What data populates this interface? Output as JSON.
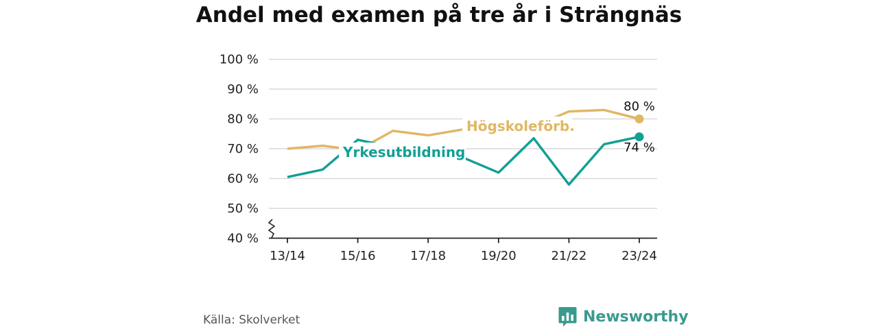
{
  "title": "Andel med examen på tre år i Strängnäs",
  "source": "Källa: Skolverket",
  "brand": "Newsworthy",
  "colors": {
    "hogskole": "#e0b765",
    "yrkes": "#12a095",
    "grid": "#d9d9d9",
    "axis": "#222222",
    "brand": "#3a9a8e"
  },
  "chart_data": {
    "type": "line",
    "title": "Andel med examen på tre år i Strängnäs",
    "x": [
      "13/14",
      "14/15",
      "15/16",
      "16/17",
      "17/18",
      "18/19",
      "19/20",
      "20/21",
      "21/22",
      "22/23",
      "23/24"
    ],
    "x_tick_labels": [
      "13/14",
      "15/16",
      "17/18",
      "19/20",
      "21/22",
      "23/24"
    ],
    "y_tick_labels": [
      "40 %",
      "50 %",
      "60 %",
      "70 %",
      "80 %",
      "90 %",
      "100 %"
    ],
    "ylim": [
      40,
      100
    ],
    "y_axis_break": true,
    "grid": true,
    "series": [
      {
        "name": "Högskoleförb.",
        "values": [
          70,
          71,
          69.5,
          76,
          74.5,
          76.5,
          77,
          77.5,
          82.5,
          83,
          80
        ],
        "end_label": "80 %"
      },
      {
        "name": "Yrkesutbildning",
        "values": [
          60.5,
          63,
          73,
          70.5,
          71,
          67,
          62,
          73.5,
          58,
          71.5,
          74
        ],
        "end_label": "74 %"
      }
    ]
  }
}
